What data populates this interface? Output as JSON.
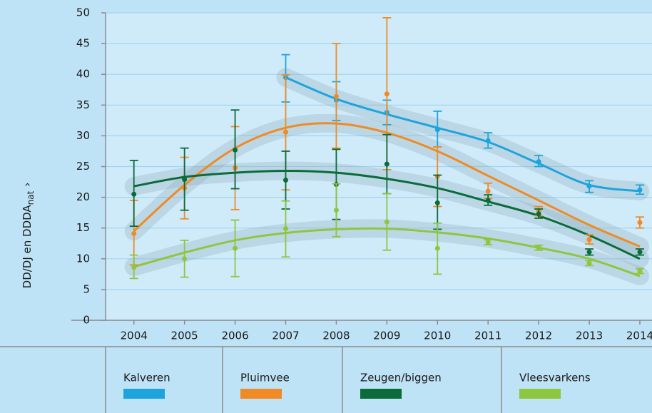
{
  "chart_data": {
    "type": "scatter",
    "y_label": {
      "main": "DD/DJ en DDDA",
      "sub": "nat",
      "suffix": "›"
    },
    "x": [
      2004,
      2005,
      2006,
      2007,
      2008,
      2009,
      2010,
      2011,
      2012,
      2013,
      2014
    ],
    "xlim": [
      2003.44,
      2014.24
    ],
    "xticks": [
      2004,
      2005,
      2006,
      2007,
      2008,
      2009,
      2010,
      2011,
      2012,
      2013,
      2014
    ],
    "ylim": [
      0,
      50
    ],
    "yticks": [
      0,
      5,
      10,
      15,
      20,
      25,
      30,
      35,
      40,
      45,
      50
    ],
    "grid": true,
    "legend": "bottom",
    "series": [
      {
        "name": "Kalveren",
        "color": "#1ea4dc",
        "values": [
          null,
          null,
          null,
          39.5,
          35.8,
          33.8,
          31,
          29.2,
          25.8,
          21.8,
          21.2
        ],
        "lower": [
          null,
          null,
          null,
          35.5,
          32.5,
          31.8,
          28.2,
          28,
          25,
          20.8,
          20.5
        ],
        "upper": [
          null,
          null,
          null,
          43.2,
          38.8,
          35.8,
          34,
          30.5,
          26.8,
          22.7,
          22
        ],
        "trend": [
          null,
          null,
          null,
          39.5,
          36,
          33.5,
          31.3,
          29,
          25.5,
          22,
          21
        ]
      },
      {
        "name": "Pluimvee",
        "color": "#f08a24",
        "values": [
          14.1,
          21.5,
          24.8,
          30.6,
          36.4,
          36.8,
          23.4,
          21,
          17.8,
          13.1,
          15.9
        ],
        "lower": [
          9,
          16.5,
          18,
          21.2,
          28,
          24.5,
          18.5,
          19.8,
          17,
          12.4,
          15
        ],
        "upper": [
          19.5,
          26.5,
          31.5,
          39.9,
          45,
          49.2,
          28.2,
          22.3,
          18.5,
          13.9,
          16.8
        ],
        "trend": [
          14.5,
          22,
          28,
          31.3,
          32,
          30.5,
          27.5,
          23.5,
          19.5,
          15.5,
          12
        ]
      },
      {
        "name": "Zeugen/biggen",
        "color": "#0b6b3a",
        "values": [
          20.5,
          22.9,
          27.7,
          22.8,
          22.1,
          25.4,
          19.1,
          19.5,
          17.3,
          11.1,
          11.1
        ],
        "lower": [
          15.3,
          17.9,
          21.4,
          18.1,
          16.4,
          20.6,
          14.8,
          18.7,
          16.6,
          10.6,
          10.6
        ],
        "upper": [
          26,
          28,
          34.2,
          27.5,
          27.8,
          30.2,
          23.6,
          20.4,
          18.1,
          11.6,
          11.6
        ],
        "trend": [
          21.8,
          23.3,
          24,
          24.3,
          24,
          23,
          21.5,
          19.3,
          17,
          13.8,
          10
        ]
      },
      {
        "name": "Vleesvarkens",
        "color": "#8dc63f",
        "values": [
          8.6,
          10,
          11.7,
          14.9,
          17.9,
          16,
          11.7,
          12.7,
          11.8,
          9.3,
          8
        ],
        "lower": [
          6.8,
          7,
          7.1,
          10.3,
          13.6,
          11.4,
          7.5,
          12.3,
          11.4,
          8.9,
          7.6
        ],
        "upper": [
          10.6,
          13,
          16.3,
          19.4,
          22.2,
          20.6,
          15.8,
          13.1,
          12.2,
          9.7,
          8.4
        ],
        "trend": [
          8.7,
          11,
          13,
          14.2,
          14.8,
          14.9,
          14.3,
          13.3,
          11.8,
          10,
          7.2
        ]
      }
    ]
  }
}
